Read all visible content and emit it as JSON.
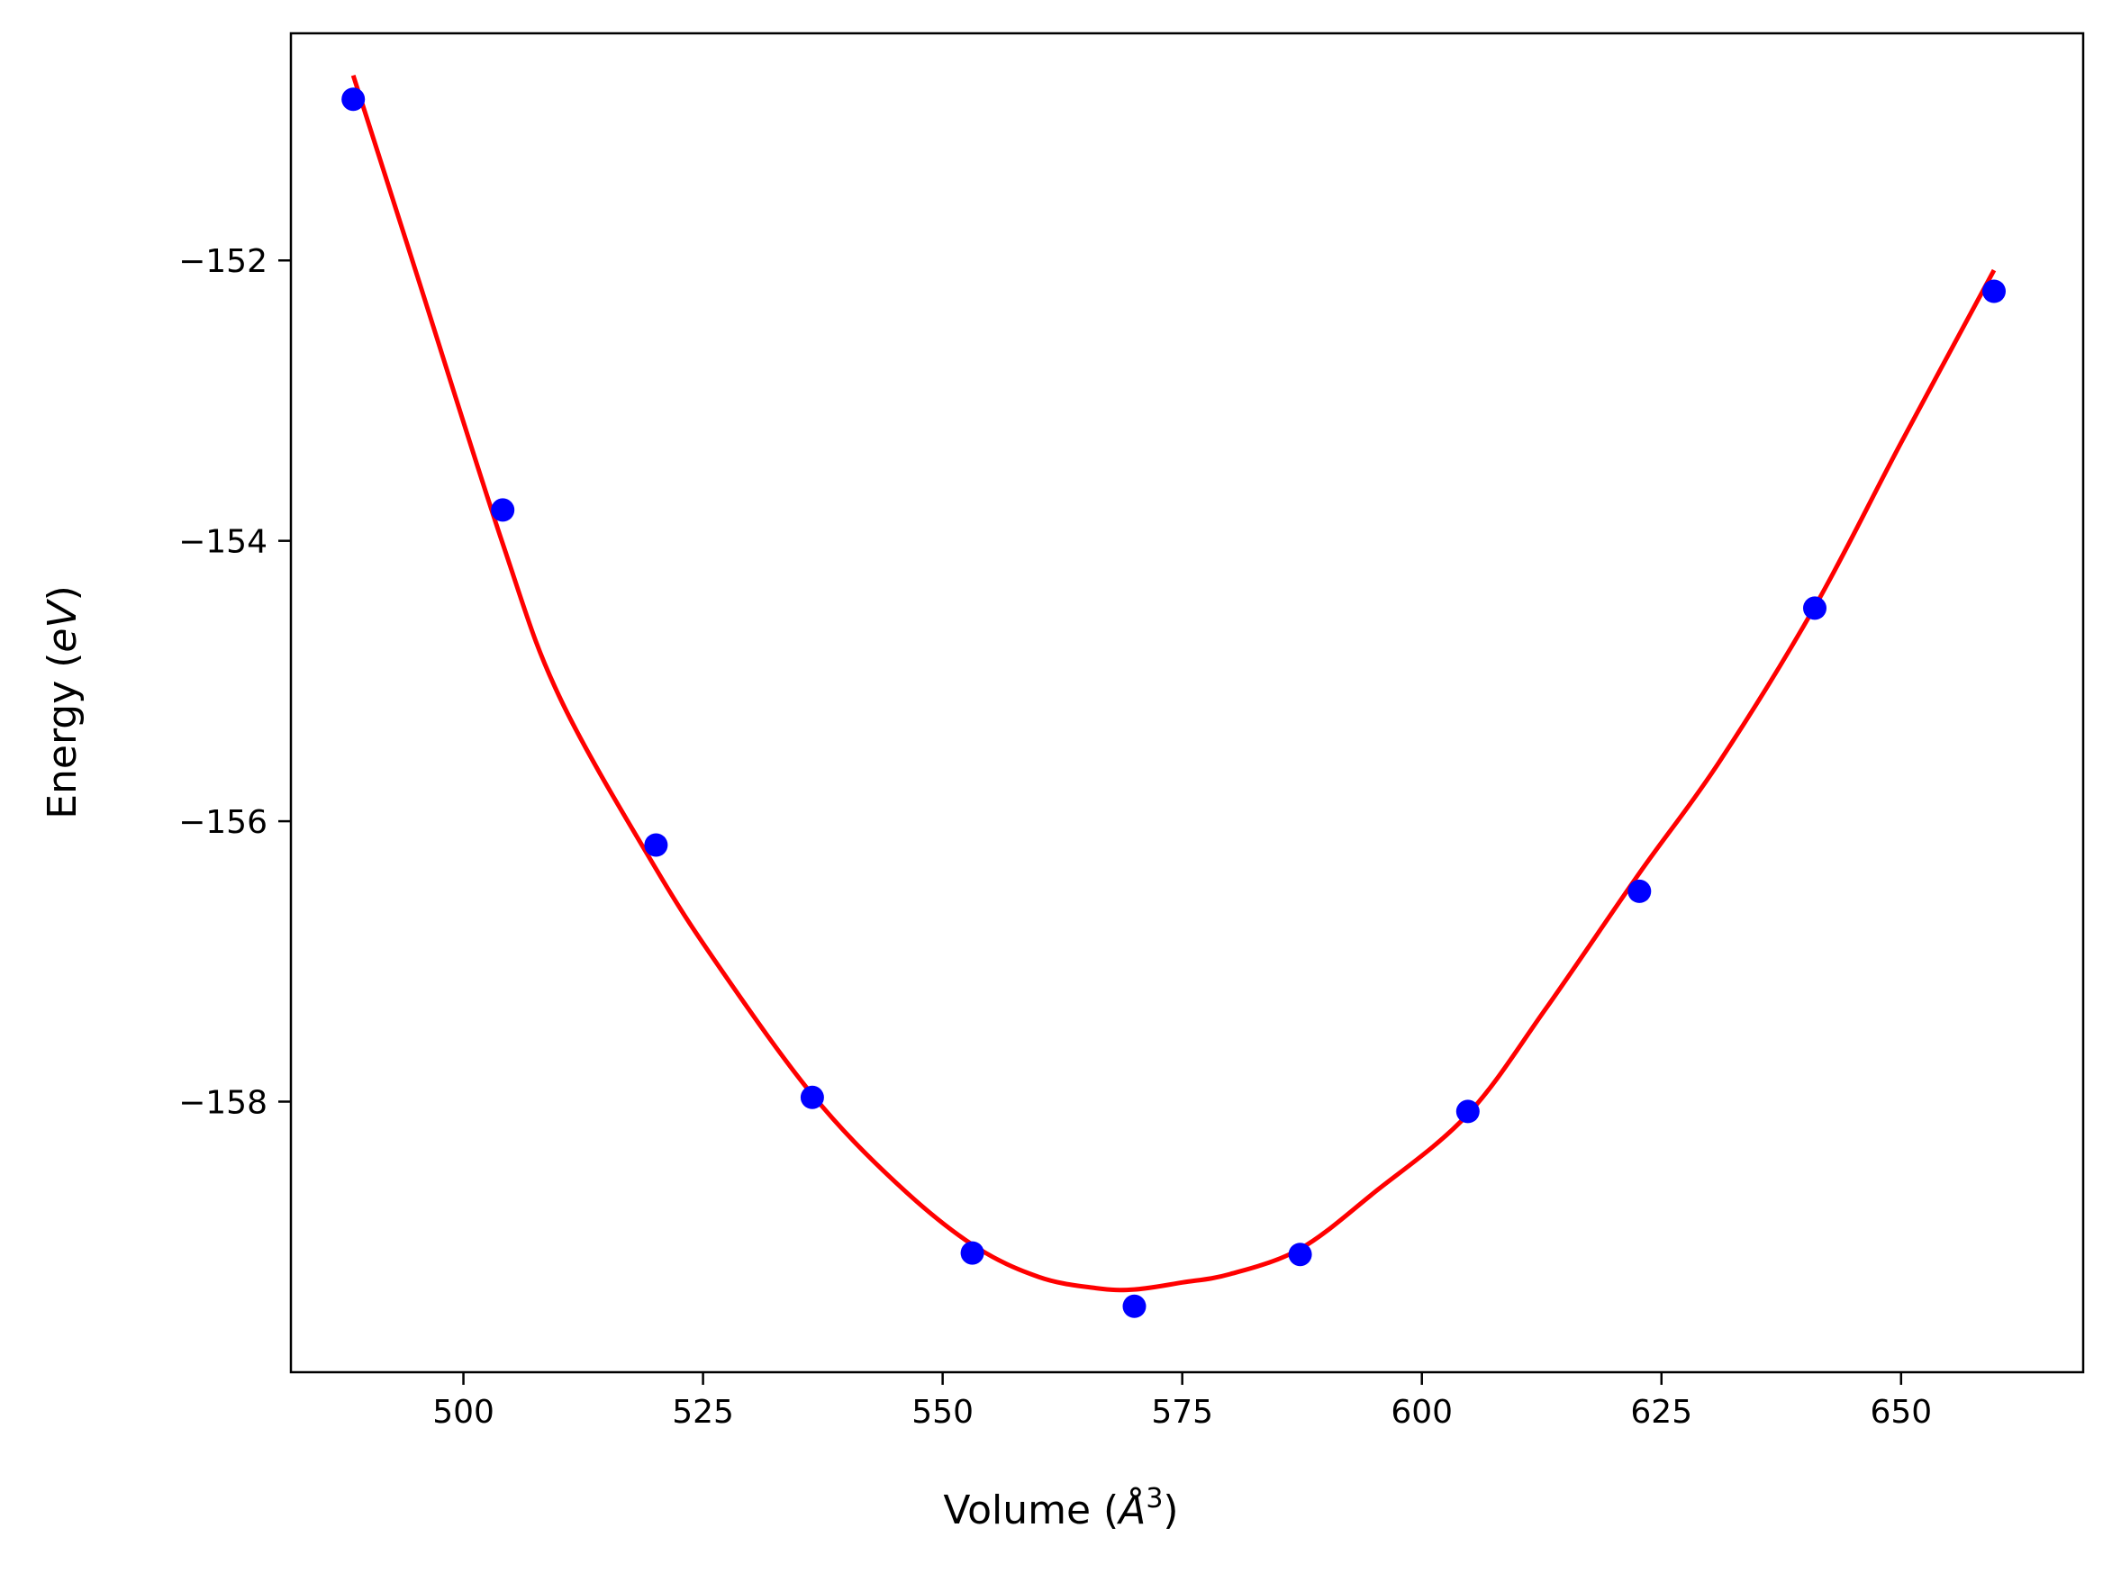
{
  "chart_data": {
    "type": "scatter",
    "title": "",
    "xlabel": "Volume",
    "xlabel_unit_base": "Å",
    "xlabel_unit_sup": "3",
    "ylabel": "Energy",
    "ylabel_unit": "eV",
    "xlim": [
      482,
      669
    ],
    "ylim": [
      -159.93,
      -150.38
    ],
    "xticks": [
      500,
      525,
      550,
      575,
      600,
      625,
      650
    ],
    "yticks": [
      -158,
      -156,
      -154,
      -152
    ],
    "xtick_labels": [
      "500",
      "525",
      "550",
      "575",
      "600",
      "625",
      "650"
    ],
    "ytick_labels": [
      "−158",
      "−156",
      "−154",
      "−152"
    ],
    "grid": false,
    "series": [
      {
        "kind": "points",
        "color": "#0000ff",
        "x": [
          488.5,
          504.1,
          520.1,
          536.4,
          553.1,
          570.0,
          587.3,
          604.8,
          622.7,
          641.0,
          659.7
        ],
        "y": [
          -150.85,
          -153.78,
          -156.17,
          -157.97,
          -159.08,
          -159.46,
          -159.09,
          -158.07,
          -156.5,
          -154.48,
          -152.22
        ]
      },
      {
        "kind": "fit-curve",
        "color": "#ff0000",
        "x": [
          488.5,
          495,
          504.1,
          510,
          520.1,
          527,
          536.4,
          545,
          553.1,
          560,
          566,
          570.0,
          575,
          580,
          587.3,
          595,
          604.8,
          613,
          622.7,
          631,
          641.0,
          650,
          659.7
        ],
        "y": [
          -150.68,
          -152.07,
          -154.02,
          -155.11,
          -156.34,
          -157.07,
          -157.95,
          -158.57,
          -159.02,
          -159.25,
          -159.33,
          -159.34,
          -159.29,
          -159.23,
          -159.05,
          -158.65,
          -158.09,
          -157.33,
          -156.37,
          -155.58,
          -154.47,
          -153.3,
          -152.07
        ]
      }
    ]
  }
}
